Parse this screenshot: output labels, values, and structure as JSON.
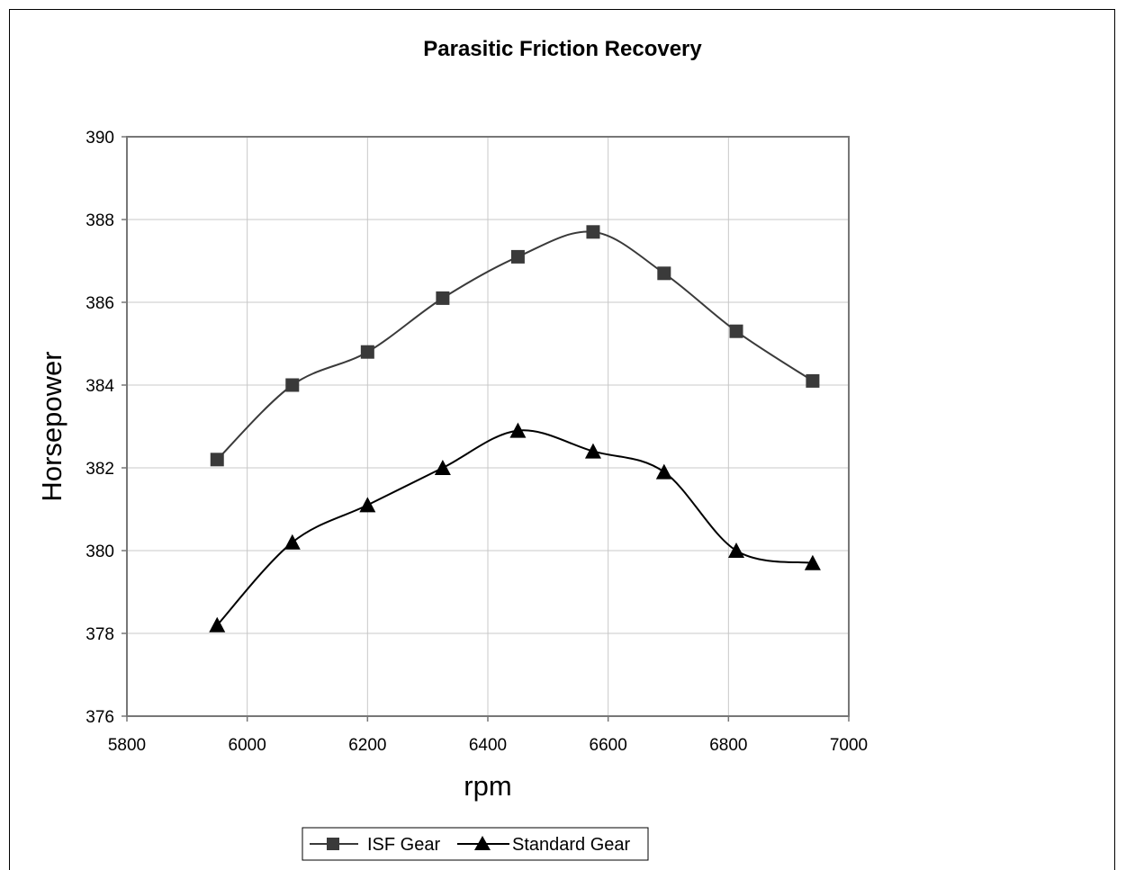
{
  "chart_data": {
    "type": "line",
    "title": "Parasitic Friction Recovery",
    "xlabel": "rpm",
    "ylabel": "Horsepower",
    "xlim": [
      5800,
      7000
    ],
    "ylim": [
      376,
      390
    ],
    "x_ticks": [
      "5800",
      "6000",
      "6200",
      "6400",
      "6600",
      "6800",
      "7000"
    ],
    "y_ticks": [
      "376",
      "378",
      "380",
      "382",
      "384",
      "386",
      "388",
      "390"
    ],
    "grid": true,
    "smoothed": true,
    "legend_position": "bottom",
    "series": [
      {
        "name": "ISF Gear",
        "marker": "square",
        "color": "#3a3a3a",
        "x": [
          5950,
          6075,
          6200,
          6325,
          6450,
          6575,
          6693,
          6813,
          6940
        ],
        "y": [
          382.2,
          384.0,
          384.8,
          386.1,
          387.1,
          387.7,
          386.7,
          385.3,
          384.1
        ]
      },
      {
        "name": "Standard Gear",
        "marker": "triangle",
        "color": "#000000",
        "x": [
          5950,
          6075,
          6200,
          6325,
          6450,
          6575,
          6693,
          6813,
          6940
        ],
        "y": [
          378.2,
          380.2,
          381.1,
          382.0,
          382.9,
          382.4,
          381.9,
          380.0,
          379.7
        ]
      }
    ]
  }
}
